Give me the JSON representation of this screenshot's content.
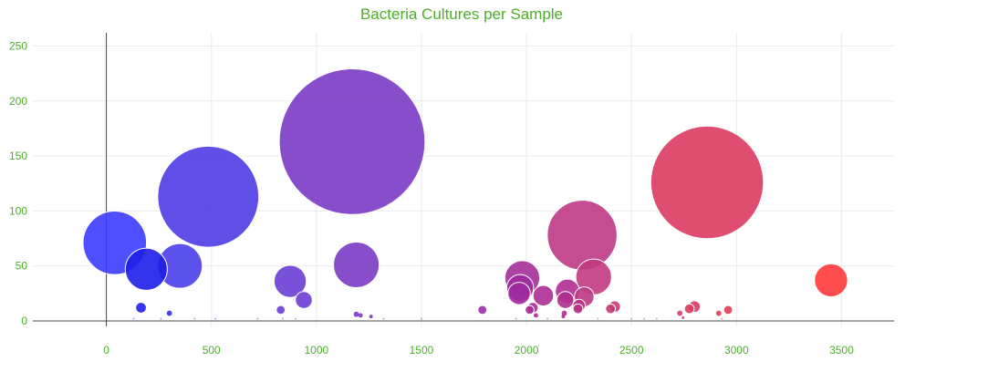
{
  "chart_data": {
    "type": "scatter",
    "title": "Bacteria Cultures per Sample",
    "xlabel": "",
    "ylabel": "",
    "xlim": [
      -350,
      3750
    ],
    "ylim": [
      -5,
      262
    ],
    "x_ticks": [
      0,
      500,
      1000,
      1500,
      2000,
      2500,
      3000,
      3500
    ],
    "y_ticks": [
      0,
      50,
      100,
      150,
      200,
      250
    ],
    "grid": true,
    "legend": "none",
    "colors": {
      "title": "#4caf28",
      "ticks": "#4caf28",
      "grid": "#ebebeb",
      "axis": "#444444"
    },
    "series": [
      {
        "points": [
          {
            "x": 40,
            "y": 71,
            "size": 71,
            "color": "#3c3cff",
            "opacity": 0.9
          },
          {
            "x": 190,
            "y": 47,
            "size": 47,
            "color": "#1e1ee8",
            "opacity": 0.9
          },
          {
            "x": 350,
            "y": 50,
            "size": 50,
            "color": "#4a3ee8",
            "opacity": 0.9
          },
          {
            "x": 485,
            "y": 113,
            "size": 113,
            "color": "#4e3ce4",
            "opacity": 0.9
          },
          {
            "x": 1170,
            "y": 163,
            "size": 163,
            "color": "#7a3ac4",
            "opacity": 0.9
          },
          {
            "x": 875,
            "y": 36,
            "size": 36,
            "color": "#6a3ed4",
            "opacity": 0.9
          },
          {
            "x": 940,
            "y": 19,
            "size": 19,
            "color": "#6a3ed4",
            "opacity": 0.9
          },
          {
            "x": 1190,
            "y": 51,
            "size": 51,
            "color": "#7a3ac4",
            "opacity": 0.9
          },
          {
            "x": 165,
            "y": 12,
            "size": 12,
            "color": "#2020ee",
            "opacity": 0.9
          },
          {
            "x": 300,
            "y": 7,
            "size": 7,
            "color": "#3030e8",
            "opacity": 0.9
          },
          {
            "x": 830,
            "y": 10,
            "size": 10,
            "color": "#6a3ed4",
            "opacity": 0.9
          },
          {
            "x": 1790,
            "y": 10,
            "size": 10,
            "color": "#9a2ea8",
            "opacity": 0.9
          },
          {
            "x": 1980,
            "y": 39,
            "size": 39,
            "color": "#a4309a",
            "opacity": 0.9
          },
          {
            "x": 1970,
            "y": 30,
            "size": 30,
            "color": "#9e2a9e",
            "opacity": 0.9
          },
          {
            "x": 1965,
            "y": 25,
            "size": 25,
            "color": "#9e2a9e",
            "opacity": 0.9
          },
          {
            "x": 2080,
            "y": 23,
            "size": 23,
            "color": "#ac2e94",
            "opacity": 0.9
          },
          {
            "x": 2195,
            "y": 27,
            "size": 27,
            "color": "#b02e90",
            "opacity": 0.9
          },
          {
            "x": 2185,
            "y": 19,
            "size": 19,
            "color": "#b02e90",
            "opacity": 0.9
          },
          {
            "x": 2265,
            "y": 78,
            "size": 78,
            "color": "#bc3a84",
            "opacity": 0.9
          },
          {
            "x": 2320,
            "y": 40,
            "size": 40,
            "color": "#c23a80",
            "opacity": 0.9
          },
          {
            "x": 2275,
            "y": 22,
            "size": 22,
            "color": "#bc3a84",
            "opacity": 0.9
          },
          {
            "x": 2030,
            "y": 12,
            "size": 12,
            "color": "#a82c96",
            "opacity": 0.9
          },
          {
            "x": 2015,
            "y": 10,
            "size": 10,
            "color": "#a82c96",
            "opacity": 0.9
          },
          {
            "x": 2250,
            "y": 14,
            "size": 14,
            "color": "#b83284",
            "opacity": 0.9
          },
          {
            "x": 2245,
            "y": 11,
            "size": 11,
            "color": "#b83284",
            "opacity": 0.9
          },
          {
            "x": 2420,
            "y": 13,
            "size": 13,
            "color": "#c83a78",
            "opacity": 0.9
          },
          {
            "x": 2400,
            "y": 11,
            "size": 11,
            "color": "#c83a78",
            "opacity": 0.9
          },
          {
            "x": 2860,
            "y": 126,
            "size": 126,
            "color": "#dc3a60",
            "opacity": 0.9
          },
          {
            "x": 2800,
            "y": 13,
            "size": 13,
            "color": "#dc3a60",
            "opacity": 0.9
          },
          {
            "x": 2775,
            "y": 11,
            "size": 11,
            "color": "#dc3a60",
            "opacity": 0.9
          },
          {
            "x": 2730,
            "y": 7,
            "size": 7,
            "color": "#dc3a60",
            "opacity": 0.9
          },
          {
            "x": 2960,
            "y": 10,
            "size": 10,
            "color": "#e03a58",
            "opacity": 0.9
          },
          {
            "x": 2915,
            "y": 7,
            "size": 7,
            "color": "#e03a58",
            "opacity": 0.9
          },
          {
            "x": 3450,
            "y": 37,
            "size": 37,
            "color": "#ff3a3a",
            "opacity": 0.9
          },
          {
            "x": 1190,
            "y": 6,
            "size": 6,
            "color": "#7a3ac4",
            "opacity": 0.9
          },
          {
            "x": 1210,
            "y": 5,
            "size": 5,
            "color": "#7a3ac4",
            "opacity": 0.9
          },
          {
            "x": 1260,
            "y": 4,
            "size": 4,
            "color": "#7a3ac4",
            "opacity": 0.9
          },
          {
            "x": 2045,
            "y": 5,
            "size": 5,
            "color": "#a82c96",
            "opacity": 0.9
          },
          {
            "x": 2180,
            "y": 7,
            "size": 7,
            "color": "#b02e90",
            "opacity": 0.9
          },
          {
            "x": 2175,
            "y": 4,
            "size": 4,
            "color": "#b02e90",
            "opacity": 0.9
          },
          {
            "x": 2745,
            "y": 3,
            "size": 3,
            "color": "#dc3a60",
            "opacity": 0.9
          },
          {
            "x": 130,
            "y": 2,
            "size": 2,
            "color": "#3c3cff",
            "opacity": 0.5
          },
          {
            "x": 260,
            "y": 2,
            "size": 2,
            "color": "#3c3cff",
            "opacity": 0.5
          },
          {
            "x": 420,
            "y": 2,
            "size": 2,
            "color": "#4e3ce4",
            "opacity": 0.5
          },
          {
            "x": 520,
            "y": 2,
            "size": 2,
            "color": "#4e3ce4",
            "opacity": 0.5
          },
          {
            "x": 720,
            "y": 2,
            "size": 2,
            "color": "#6a3ed4",
            "opacity": 0.5
          },
          {
            "x": 840,
            "y": 2,
            "size": 2,
            "color": "#6a3ed4",
            "opacity": 0.5
          },
          {
            "x": 900,
            "y": 2,
            "size": 2,
            "color": "#6a3ed4",
            "opacity": 0.5
          },
          {
            "x": 1320,
            "y": 2,
            "size": 2,
            "color": "#7a3ac4",
            "opacity": 0.5
          },
          {
            "x": 1500,
            "y": 2,
            "size": 2,
            "color": "#8a36b8",
            "opacity": 0.5
          },
          {
            "x": 1950,
            "y": 2,
            "size": 2,
            "color": "#9e2a9e",
            "opacity": 0.5
          },
          {
            "x": 2100,
            "y": 2,
            "size": 2,
            "color": "#ac2e94",
            "opacity": 0.5
          },
          {
            "x": 2340,
            "y": 2,
            "size": 2,
            "color": "#c23a80",
            "opacity": 0.5
          },
          {
            "x": 2500,
            "y": 2,
            "size": 2,
            "color": "#c83a78",
            "opacity": 0.5
          },
          {
            "x": 2560,
            "y": 2,
            "size": 2,
            "color": "#c83a78",
            "opacity": 0.5
          },
          {
            "x": 2620,
            "y": 2,
            "size": 2,
            "color": "#d03a70",
            "opacity": 0.5
          },
          {
            "x": 2930,
            "y": 2,
            "size": 2,
            "color": "#e03a58",
            "opacity": 0.5
          }
        ]
      }
    ]
  }
}
